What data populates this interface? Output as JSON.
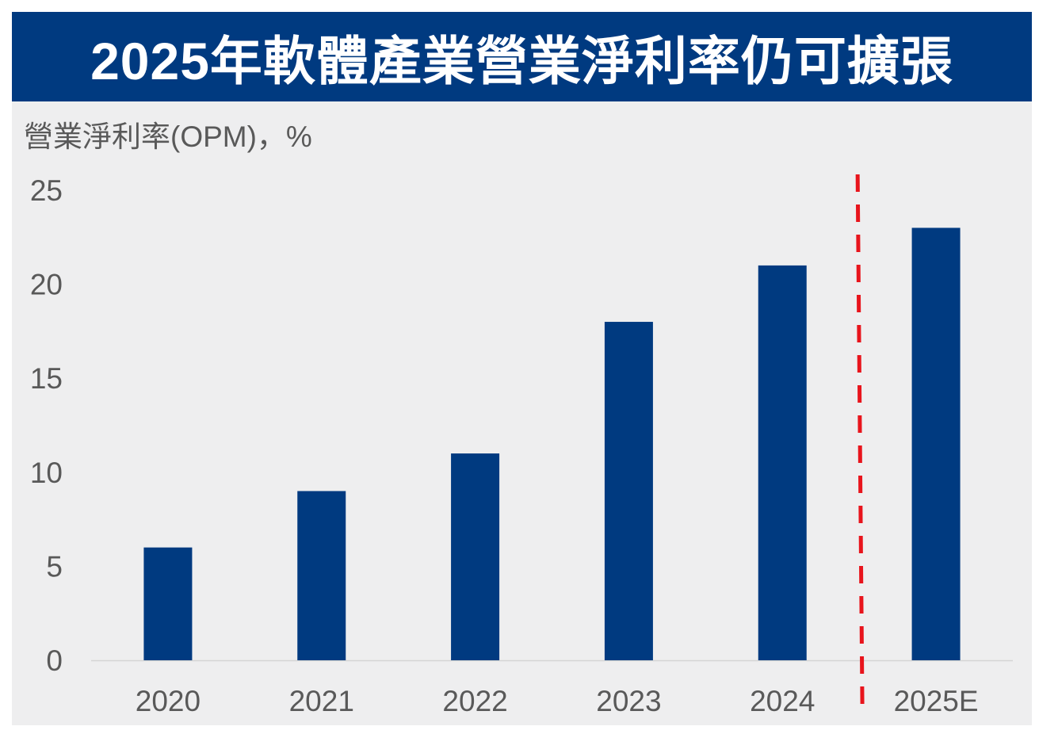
{
  "title": "2025年軟體產業營業淨利率仍可擴張",
  "colors": {
    "title_bg": "#003a80",
    "panel_bg": "#eeeeef",
    "bar": "#003a80",
    "divider": "#e8141c",
    "tick_text": "#595959",
    "axis_line": "#d4d4d4"
  },
  "chart_data": {
    "type": "bar",
    "title": "2025年軟體產業營業淨利率仍可擴張",
    "ylabel": "營業淨利率(OPM)，%",
    "xlabel": "",
    "categories": [
      "2020",
      "2021",
      "2022",
      "2023",
      "2024",
      "2025E"
    ],
    "values": [
      6,
      9,
      11,
      18,
      21,
      23
    ],
    "ylim": [
      0,
      25
    ],
    "yticks": [
      "0",
      "5",
      "10",
      "15",
      "20",
      "25"
    ],
    "grid": false,
    "legend": "none",
    "annotation": "dashed red vertical line between 2024 and 2025E separating actual from estimate"
  }
}
